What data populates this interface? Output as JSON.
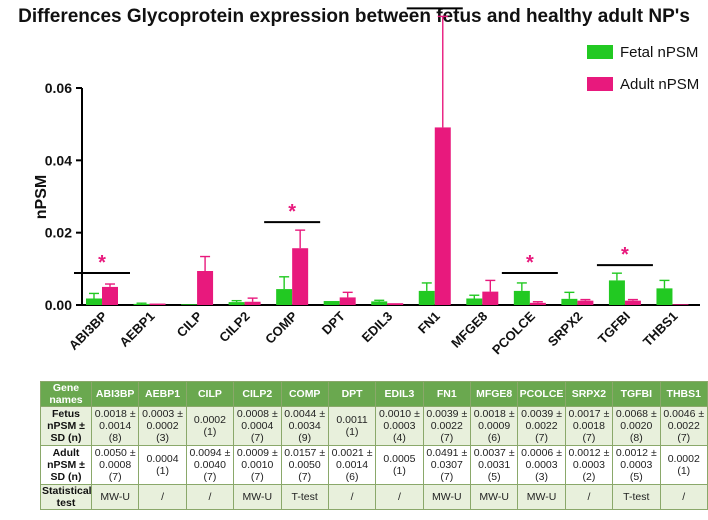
{
  "chart_data": {
    "type": "bar",
    "title": "Differences Glycoprotein expression between fetus and healthy adult NP's",
    "ylabel": "nPSM",
    "ylim": [
      0,
      0.06
    ],
    "yticks": [
      "0.00",
      "0.02",
      "0.04",
      "0.06"
    ],
    "legend_position": "top-right",
    "categories": [
      "ABI3BP",
      "AEBP1",
      "CILP",
      "CILP2",
      "COMP",
      "DPT",
      "EDIL3",
      "FN1",
      "MFGE8",
      "PCOLCE",
      "SRPX2",
      "TGFBI",
      "THBS1"
    ],
    "series": [
      {
        "name": "Fetal nPSM",
        "color": "#22c922",
        "values": [
          0.0018,
          0.0003,
          0.0002,
          0.0008,
          0.0044,
          0.0011,
          0.001,
          0.0039,
          0.0018,
          0.0039,
          0.0017,
          0.0068,
          0.0046
        ],
        "errors": [
          0.0014,
          0.0002,
          0,
          0.0004,
          0.0034,
          0,
          0.0003,
          0.0022,
          0.0009,
          0.0022,
          0.0018,
          0.002,
          0.0022
        ]
      },
      {
        "name": "Adult nPSM",
        "color": "#e8197d",
        "values": [
          0.005,
          0.0004,
          0.0094,
          0.0009,
          0.0157,
          0.0021,
          0.0005,
          0.0491,
          0.0037,
          0.0006,
          0.0012,
          0.0012,
          0.0002
        ],
        "errors": [
          0.0008,
          0,
          0.004,
          0.001,
          0.005,
          0.0014,
          0,
          0.0307,
          0.0031,
          0.0003,
          0.0003,
          0.0003,
          0
        ]
      }
    ],
    "significance": {
      "marker": "*",
      "categories": [
        "ABI3BP",
        "COMP",
        "FN1",
        "PCOLCE",
        "TGFBI"
      ]
    }
  },
  "table": {
    "header": [
      "Gene names",
      "ABI3BP",
      "AEBP1",
      "CILP",
      "CILP2",
      "COMP",
      "DPT",
      "EDIL3",
      "FN1",
      "MFGE8",
      "PCOLCE",
      "SRPX2",
      "TGFBI",
      "THBS1"
    ],
    "rows": [
      {
        "label": "Fetus nPSM ± SD (n)",
        "cells": [
          "0.0018 ± 0.0014 (8)",
          "0.0003 ± 0.0002 (3)",
          "0.0002 (1)",
          "0.0008 ± 0.0004 (7)",
          "0.0044 ± 0.0034 (9)",
          "0.0011 (1)",
          "0.0010 ± 0.0003 (4)",
          "0.0039 ± 0.0022 (7)",
          "0.0018 ± 0.0009 (6)",
          "0.0039 ± 0.0022 (7)",
          "0.0017 ± 0.0018 (7)",
          "0.0068 ± 0.0020 (8)",
          "0.0046 ± 0.0022 (7)"
        ]
      },
      {
        "label": "Adult nPSM ± SD (n)",
        "cells": [
          "0.0050 ± 0.0008 (7)",
          "0.0004 (1)",
          "0.0094 ± 0.0040 (7)",
          "0.0009 ± 0.0010 (7)",
          "0.0157 ± 0.0050 (7)",
          "0.0021 ± 0.0014 (6)",
          "0.0005 (1)",
          "0.0491 ± 0.0307 (7)",
          "0.0037 ± 0.0031 (5)",
          "0.0006 ± 0.0003 (3)",
          "0.0012 ± 0.0003 (2)",
          "0.0012 ± 0.0003 (5)",
          "0.0002 (1)"
        ]
      },
      {
        "label": "Statistical test",
        "cells": [
          "MW-U",
          "/",
          "/",
          "MW-U",
          "T-test",
          "/",
          "/",
          "MW-U",
          "MW-U",
          "MW-U",
          "/",
          "T-test",
          "/"
        ]
      }
    ]
  }
}
